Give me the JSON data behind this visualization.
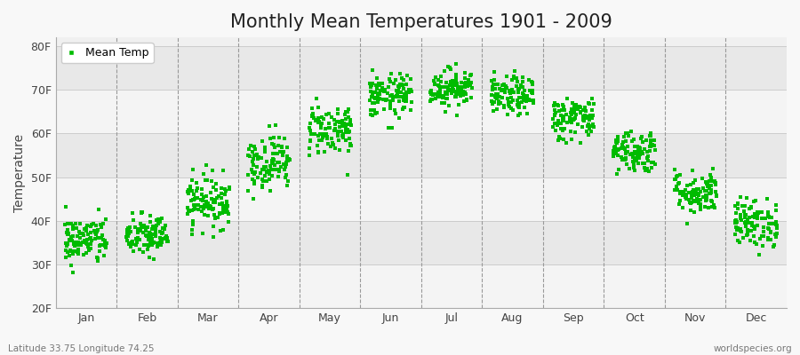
{
  "title": "Monthly Mean Temperatures 1901 - 2009",
  "ylabel": "Temperature",
  "ylim": [
    20,
    82
  ],
  "yticks": [
    20,
    30,
    40,
    50,
    60,
    70,
    80
  ],
  "ytick_labels": [
    "20F",
    "30F",
    "40F",
    "50F",
    "60F",
    "70F",
    "80F"
  ],
  "months": [
    "Jan",
    "Feb",
    "Mar",
    "Apr",
    "May",
    "Jun",
    "Jul",
    "Aug",
    "Sep",
    "Oct",
    "Nov",
    "Dec"
  ],
  "month_centers": [
    1,
    2,
    3,
    4,
    5,
    6,
    7,
    8,
    9,
    10,
    11,
    12
  ],
  "mean_temps_F": [
    35.5,
    36.5,
    44.5,
    53.5,
    61.0,
    68.5,
    70.5,
    68.5,
    63.5,
    56.0,
    46.5,
    39.5
  ],
  "std_temps_F": [
    2.8,
    2.5,
    3.0,
    3.2,
    3.0,
    2.5,
    2.2,
    2.2,
    2.5,
    2.5,
    2.5,
    2.8
  ],
  "n_years": 109,
  "marker_color": "#00bb00",
  "marker_size": 2.5,
  "bg_bands": [
    "#f0f0f0",
    "#e8e8e8",
    "#f0f0f0",
    "#e8e8e8",
    "#f0f0f0",
    "#e8e8e8"
  ],
  "grid_line_color": "#cccccc",
  "vline_color": "#999999",
  "legend_label": "Mean Temp",
  "subtitle_left": "Latitude 33.75 Longitude 74.25",
  "subtitle_right": "worldspecies.org",
  "title_fontsize": 15,
  "axis_fontsize": 9,
  "label_fontsize": 10,
  "fig_bg": "#f8f8f8"
}
